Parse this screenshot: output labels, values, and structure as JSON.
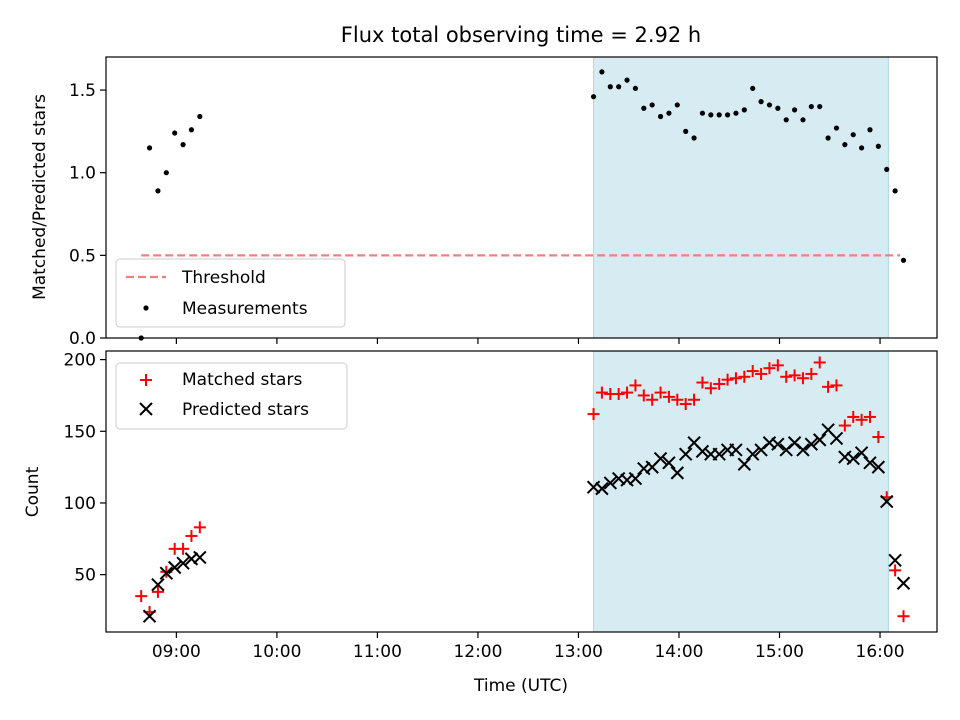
{
  "chart_data": [
    {
      "type": "scatter",
      "panel": "top",
      "title": "Flux total observing time = 2.92 h",
      "xlabel": "",
      "ylabel": "Matched/Predicted stars",
      "xlim": [
        "08:18",
        "16:34"
      ],
      "ylim": [
        0,
        1.7
      ],
      "yticks": [
        0.0,
        0.5,
        1.0,
        1.5
      ],
      "ytick_labels": [
        "0.0",
        "0.5",
        "1.0",
        "1.5"
      ],
      "xticks": [
        "09:00",
        "10:00",
        "11:00",
        "12:00",
        "13:00",
        "14:00",
        "15:00",
        "16:00"
      ],
      "grid": false,
      "shaded_interval": {
        "start": "13:09",
        "end": "16:05",
        "color": "#add8e6"
      },
      "threshold": {
        "name": "Threshold",
        "y": 0.5,
        "x_start": "08:39",
        "x_end": "16:12",
        "color": "#f08080",
        "style": "dashed"
      },
      "legend": {
        "placement": "lower-left",
        "entries": [
          "Threshold",
          "Measurements"
        ]
      },
      "series": [
        {
          "name": "Measurements",
          "color": "#000000",
          "marker": "dot",
          "points": [
            [
              "08:39",
              0.0
            ],
            [
              "08:44",
              1.15
            ],
            [
              "08:49",
              0.89
            ],
            [
              "08:54",
              1.0
            ],
            [
              "08:59",
              1.24
            ],
            [
              "09:04",
              1.17
            ],
            [
              "09:09",
              1.26
            ],
            [
              "09:14",
              1.34
            ],
            [
              "13:09",
              1.46
            ],
            [
              "13:14",
              1.61
            ],
            [
              "13:19",
              1.52
            ],
            [
              "13:24",
              1.52
            ],
            [
              "13:29",
              1.56
            ],
            [
              "13:34",
              1.51
            ],
            [
              "13:39",
              1.39
            ],
            [
              "13:44",
              1.41
            ],
            [
              "13:49",
              1.34
            ],
            [
              "13:54",
              1.36
            ],
            [
              "13:59",
              1.41
            ],
            [
              "14:04",
              1.25
            ],
            [
              "14:09",
              1.21
            ],
            [
              "14:14",
              1.36
            ],
            [
              "14:19",
              1.35
            ],
            [
              "14:24",
              1.35
            ],
            [
              "14:29",
              1.35
            ],
            [
              "14:34",
              1.36
            ],
            [
              "14:39",
              1.38
            ],
            [
              "14:44",
              1.51
            ],
            [
              "14:49",
              1.43
            ],
            [
              "14:54",
              1.41
            ],
            [
              "14:59",
              1.39
            ],
            [
              "15:04",
              1.32
            ],
            [
              "15:09",
              1.38
            ],
            [
              "15:14",
              1.32
            ],
            [
              "15:19",
              1.4
            ],
            [
              "15:24",
              1.4
            ],
            [
              "15:29",
              1.21
            ],
            [
              "15:34",
              1.27
            ],
            [
              "15:39",
              1.17
            ],
            [
              "15:44",
              1.23
            ],
            [
              "15:49",
              1.15
            ],
            [
              "15:54",
              1.26
            ],
            [
              "15:59",
              1.16
            ],
            [
              "16:04",
              1.02
            ],
            [
              "16:09",
              0.89
            ],
            [
              "16:14",
              0.47
            ]
          ]
        }
      ]
    },
    {
      "type": "scatter",
      "panel": "bottom",
      "xlabel": "Time (UTC)",
      "ylabel": "Count",
      "xlim": [
        "08:18",
        "16:34"
      ],
      "ylim": [
        10,
        206
      ],
      "yticks": [
        50,
        100,
        150,
        200
      ],
      "xticks": [
        "09:00",
        "10:00",
        "11:00",
        "12:00",
        "13:00",
        "14:00",
        "15:00",
        "16:00"
      ],
      "grid": false,
      "shaded_interval": {
        "start": "13:09",
        "end": "16:05",
        "color": "#add8e6"
      },
      "legend": {
        "placement": "upper-left",
        "entries": [
          "Matched stars",
          "Predicted stars"
        ]
      },
      "series": [
        {
          "name": "Matched stars",
          "color": "#ff0000",
          "marker": "plus",
          "points": [
            [
              "08:39",
              35
            ],
            [
              "08:44",
              24
            ],
            [
              "08:49",
              38
            ],
            [
              "08:54",
              52
            ],
            [
              "08:59",
              68
            ],
            [
              "09:04",
              68
            ],
            [
              "09:09",
              77
            ],
            [
              "09:14",
              83
            ],
            [
              "13:09",
              162
            ],
            [
              "13:14",
              177
            ],
            [
              "13:19",
              176
            ],
            [
              "13:24",
              176
            ],
            [
              "13:29",
              177
            ],
            [
              "13:34",
              182
            ],
            [
              "13:39",
              175
            ],
            [
              "13:44",
              172
            ],
            [
              "13:49",
              177
            ],
            [
              "13:54",
              174
            ],
            [
              "13:59",
              172
            ],
            [
              "14:04",
              169
            ],
            [
              "14:09",
              172
            ],
            [
              "14:14",
              184
            ],
            [
              "14:19",
              180
            ],
            [
              "14:24",
              183
            ],
            [
              "14:29",
              186
            ],
            [
              "14:34",
              187
            ],
            [
              "14:39",
              188
            ],
            [
              "14:44",
              192
            ],
            [
              "14:49",
              190
            ],
            [
              "14:54",
              194
            ],
            [
              "14:59",
              196
            ],
            [
              "15:04",
              188
            ],
            [
              "15:09",
              189
            ],
            [
              "15:14",
              187
            ],
            [
              "15:19",
              190
            ],
            [
              "15:24",
              198
            ],
            [
              "15:29",
              181
            ],
            [
              "15:34",
              182
            ],
            [
              "15:39",
              154
            ],
            [
              "15:44",
              160
            ],
            [
              "15:49",
              158
            ],
            [
              "15:54",
              160
            ],
            [
              "15:59",
              146
            ],
            [
              "16:04",
              104
            ],
            [
              "16:09",
              53
            ],
            [
              "16:14",
              21
            ]
          ]
        },
        {
          "name": "Predicted stars",
          "color": "#000000",
          "marker": "x",
          "points": [
            [
              "08:44",
              21
            ],
            [
              "08:49",
              43
            ],
            [
              "08:54",
              51
            ],
            [
              "08:59",
              55
            ],
            [
              "09:04",
              58
            ],
            [
              "09:09",
              61
            ],
            [
              "09:14",
              62
            ],
            [
              "13:09",
              111
            ],
            [
              "13:14",
              110
            ],
            [
              "13:19",
              114
            ],
            [
              "13:24",
              117
            ],
            [
              "13:29",
              116
            ],
            [
              "13:34",
              117
            ],
            [
              "13:39",
              124
            ],
            [
              "13:44",
              125
            ],
            [
              "13:49",
              131
            ],
            [
              "13:54",
              128
            ],
            [
              "13:59",
              121
            ],
            [
              "14:04",
              134
            ],
            [
              "14:09",
              142
            ],
            [
              "14:14",
              136
            ],
            [
              "14:19",
              134
            ],
            [
              "14:24",
              134
            ],
            [
              "14:29",
              137
            ],
            [
              "14:34",
              137
            ],
            [
              "14:39",
              127
            ],
            [
              "14:44",
              134
            ],
            [
              "14:49",
              137
            ],
            [
              "14:54",
              142
            ],
            [
              "14:59",
              141
            ],
            [
              "15:04",
              137
            ],
            [
              "15:09",
              142
            ],
            [
              "15:14",
              137
            ],
            [
              "15:19",
              141
            ],
            [
              "15:24",
              144
            ],
            [
              "15:29",
              151
            ],
            [
              "15:34",
              145
            ],
            [
              "15:39",
              132
            ],
            [
              "15:44",
              131
            ],
            [
              "15:49",
              135
            ],
            [
              "15:54",
              128
            ],
            [
              "15:59",
              125
            ],
            [
              "16:04",
              101
            ],
            [
              "16:09",
              60
            ],
            [
              "16:14",
              44
            ]
          ]
        }
      ]
    }
  ]
}
